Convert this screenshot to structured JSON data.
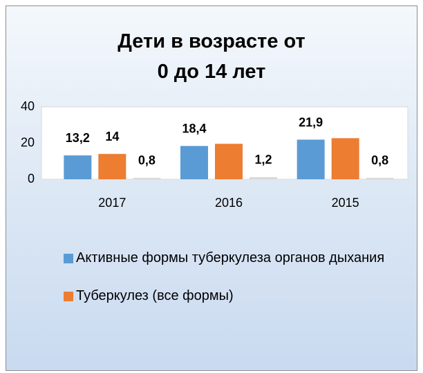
{
  "chart_data": {
    "type": "bar",
    "title": "Дети в возрасте от 0 до 14 лет",
    "categories": [
      "2017",
      "2016",
      "2015"
    ],
    "series": [
      {
        "name": "Активные формы туберкулеза органов дыхания",
        "color": "#5b9bd5",
        "values": [
          13.2,
          18.4,
          21.9
        ],
        "value_labels": [
          "13,2",
          "18,4",
          "21,9"
        ]
      },
      {
        "name": "Туберкулез (все формы)",
        "color": "#ed7d31",
        "values": [
          14,
          19.6,
          22.7
        ],
        "value_labels": [
          "14",
          null,
          null
        ]
      },
      {
        "color": "#d9d9d9",
        "values": [
          0.8,
          1.2,
          0.8
        ],
        "value_labels": [
          "0,8",
          "1,2",
          "0,8"
        ]
      }
    ],
    "ylim": [
      0,
      40
    ],
    "yticks": [
      0,
      20,
      40
    ],
    "grid": false
  }
}
